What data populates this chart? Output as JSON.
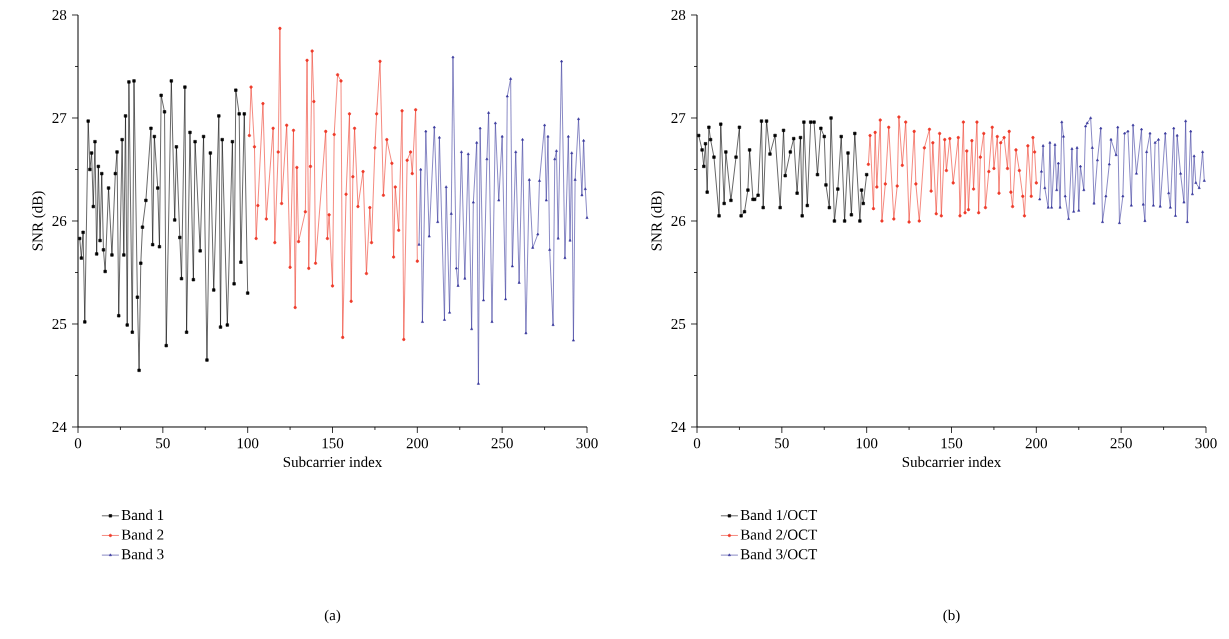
{
  "chart_data": [
    {
      "type": "line",
      "xlabel": "Subcarrier index",
      "ylabel": "SNR (dB)",
      "xlim": [
        0,
        300
      ],
      "ylim": [
        24,
        28
      ],
      "xticks": [
        0,
        50,
        100,
        150,
        200,
        250,
        300
      ],
      "yticks": [
        24,
        25,
        26,
        27,
        28
      ],
      "legend": "bottom",
      "annotations": [
        "(a)"
      ],
      "series": [
        {
          "name": "Band 1",
          "color": "#000000",
          "marker": "square",
          "x": [
            1,
            2,
            3,
            4,
            6,
            7,
            8,
            9,
            10,
            11,
            12,
            13,
            14,
            15,
            16,
            18,
            20,
            22,
            23,
            24,
            26,
            27,
            28,
            29,
            30,
            32,
            33,
            35,
            36,
            37,
            38,
            40,
            43,
            44,
            45,
            47,
            48,
            49,
            51,
            52,
            55,
            57,
            58,
            60,
            61,
            63,
            64,
            66,
            68,
            69,
            72,
            74,
            76,
            78,
            80,
            83,
            84,
            85,
            88,
            91,
            92,
            93,
            95,
            96,
            98,
            100
          ],
          "values": [
            25.83,
            25.64,
            25.89,
            25.02,
            26.97,
            26.5,
            26.66,
            26.14,
            26.77,
            25.68,
            26.53,
            25.81,
            26.46,
            25.72,
            25.51,
            26.32,
            25.67,
            26.46,
            26.67,
            25.08,
            26.79,
            25.67,
            27.02,
            24.99,
            27.35,
            24.92,
            27.36,
            25.26,
            24.55,
            25.59,
            25.94,
            26.2,
            26.9,
            25.77,
            26.82,
            26.32,
            25.75,
            27.22,
            27.06,
            24.79,
            27.36,
            26.01,
            26.72,
            25.84,
            25.44,
            27.3,
            24.92,
            26.86,
            25.43,
            26.77,
            25.71,
            26.82,
            24.65,
            26.66,
            25.33,
            27.02,
            24.97,
            26.79,
            24.99,
            26.77,
            25.39,
            27.27,
            27.04,
            25.6,
            27.04,
            25.3
          ]
        },
        {
          "name": "Band 2",
          "color": "#ee3b2a",
          "marker": "circle",
          "x": [
            101,
            102,
            104,
            105,
            106,
            109,
            111,
            115,
            116,
            118,
            119,
            120,
            123,
            125,
            127,
            128,
            129,
            130,
            134,
            135,
            136,
            137,
            138,
            139,
            140,
            146,
            147,
            148,
            150,
            151,
            153,
            155,
            156,
            158,
            160,
            161,
            162,
            163,
            165,
            168,
            170,
            172,
            173,
            175,
            176,
            178,
            180,
            182,
            185,
            186,
            187,
            189,
            191,
            192,
            194,
            196,
            197,
            199,
            200
          ],
          "values": [
            26.83,
            27.3,
            26.72,
            25.83,
            26.15,
            27.14,
            26.02,
            26.9,
            25.79,
            26.67,
            27.87,
            26.17,
            26.93,
            25.55,
            26.88,
            25.16,
            26.52,
            25.8,
            26.09,
            27.56,
            25.54,
            26.53,
            27.65,
            27.16,
            25.59,
            26.87,
            25.83,
            26.06,
            25.37,
            26.84,
            27.42,
            27.36,
            24.87,
            26.26,
            27.04,
            25.22,
            26.43,
            26.9,
            26.14,
            26.48,
            25.49,
            26.13,
            25.79,
            26.71,
            27.04,
            27.55,
            26.25,
            26.79,
            26.56,
            25.65,
            26.33,
            25.91,
            27.07,
            24.85,
            26.59,
            26.67,
            26.46,
            27.08,
            25.61
          ]
        },
        {
          "name": "Band 3",
          "color": "#3a3a9e",
          "marker": "triangle",
          "x": [
            201,
            202,
            203,
            205,
            207,
            210,
            212,
            213,
            216,
            217,
            219,
            220,
            221,
            223,
            224,
            226,
            228,
            230,
            232,
            233,
            235,
            236,
            237,
            239,
            241,
            242,
            244,
            246,
            248,
            250,
            252,
            253,
            255,
            256,
            258,
            260,
            262,
            264,
            266,
            268,
            271,
            272,
            275,
            276,
            277,
            278,
            280,
            281,
            282,
            283,
            285,
            287,
            289,
            290,
            291,
            292,
            293,
            295,
            297,
            298,
            299,
            300
          ],
          "values": [
            25.77,
            26.5,
            25.02,
            26.87,
            25.85,
            26.91,
            25.99,
            26.81,
            25.04,
            26.33,
            25.11,
            26.07,
            27.59,
            25.54,
            25.37,
            26.67,
            25.44,
            26.65,
            24.95,
            26.18,
            26.76,
            24.42,
            26.9,
            25.23,
            26.6,
            27.05,
            25.02,
            26.95,
            26.2,
            26.82,
            25.24,
            27.21,
            27.38,
            25.56,
            26.67,
            25.4,
            26.79,
            24.91,
            26.4,
            25.74,
            25.87,
            26.39,
            26.93,
            26.2,
            26.82,
            25.72,
            24.99,
            26.6,
            26.68,
            25.83,
            27.55,
            25.64,
            26.82,
            25.81,
            26.66,
            24.84,
            26.4,
            26.99,
            26.25,
            26.78,
            26.31,
            26.03
          ]
        }
      ]
    },
    {
      "type": "line",
      "xlabel": "Subcarrier index",
      "ylabel": "SNR (dB)",
      "xlim": [
        0,
        300
      ],
      "ylim": [
        24,
        28
      ],
      "xticks": [
        0,
        50,
        100,
        150,
        200,
        250,
        300
      ],
      "yticks": [
        24,
        25,
        26,
        27,
        28
      ],
      "legend": "bottom",
      "annotations": [
        "(b)"
      ],
      "series": [
        {
          "name": "Band 1/OCT",
          "color": "#000000",
          "marker": "square",
          "x": [
            1,
            3,
            4,
            5,
            6,
            7,
            8,
            10,
            13,
            14,
            16,
            17,
            20,
            23,
            25,
            26,
            28,
            30,
            31,
            33,
            34,
            36,
            38,
            39,
            41,
            43,
            46,
            49,
            51,
            52,
            55,
            57,
            59,
            61,
            62,
            63,
            65,
            67,
            69,
            71,
            73,
            75,
            76,
            78,
            79,
            81,
            83,
            85,
            87,
            89,
            91,
            93,
            96,
            97,
            98,
            100
          ],
          "values": [
            26.83,
            26.69,
            26.53,
            26.75,
            26.28,
            26.91,
            26.79,
            26.62,
            26.05,
            26.94,
            26.17,
            26.67,
            26.2,
            26.62,
            26.91,
            26.05,
            26.09,
            26.3,
            26.69,
            26.21,
            26.21,
            26.25,
            26.97,
            26.13,
            26.97,
            26.65,
            26.83,
            26.13,
            26.88,
            26.44,
            26.67,
            26.8,
            26.27,
            26.81,
            26.05,
            26.96,
            26.15,
            26.96,
            26.96,
            26.45,
            26.9,
            26.82,
            26.35,
            26.13,
            27.0,
            26.0,
            26.31,
            26.82,
            26.0,
            26.66,
            26.06,
            26.85,
            26.0,
            26.3,
            26.17,
            26.45
          ]
        },
        {
          "name": "Band 2/OCT",
          "color": "#ee3b2a",
          "marker": "circle",
          "x": [
            101,
            102,
            104,
            105,
            106,
            108,
            109,
            111,
            113,
            116,
            118,
            119,
            121,
            123,
            125,
            128,
            129,
            131,
            134,
            137,
            138,
            139,
            141,
            143,
            144,
            146,
            147,
            149,
            151,
            154,
            155,
            157,
            158,
            159,
            160,
            162,
            163,
            165,
            166,
            167,
            169,
            170,
            172,
            174,
            175,
            177,
            178,
            179,
            181,
            183,
            184,
            185,
            186,
            188,
            190,
            192,
            193,
            195,
            197,
            198,
            199,
            200
          ],
          "values": [
            26.55,
            26.83,
            26.12,
            26.86,
            26.33,
            26.98,
            26.0,
            26.36,
            26.91,
            26.02,
            26.34,
            27.01,
            26.54,
            26.96,
            25.99,
            26.87,
            26.36,
            26.0,
            26.71,
            26.89,
            26.29,
            26.76,
            26.07,
            26.85,
            26.05,
            26.79,
            26.49,
            26.8,
            26.37,
            26.81,
            26.05,
            26.96,
            26.08,
            26.68,
            26.11,
            26.78,
            26.31,
            26.96,
            26.08,
            26.62,
            26.85,
            26.13,
            26.48,
            26.91,
            26.51,
            26.82,
            26.27,
            26.76,
            26.81,
            26.51,
            26.87,
            26.28,
            26.14,
            26.69,
            26.49,
            26.24,
            26.05,
            26.73,
            26.24,
            26.81,
            26.67,
            26.37
          ]
        },
        {
          "name": "Band 3/OCT",
          "color": "#3a3a9e",
          "marker": "triangle",
          "x": [
            202,
            203,
            204,
            205,
            207,
            208,
            209,
            211,
            212,
            213,
            214,
            215,
            216,
            217,
            219,
            221,
            222,
            224,
            225,
            226,
            228,
            229,
            230,
            232,
            233,
            234,
            236,
            238,
            239,
            241,
            243,
            244,
            247,
            248,
            249,
            251,
            252,
            254,
            256,
            257,
            259,
            262,
            263,
            264,
            265,
            267,
            269,
            270,
            272,
            273,
            276,
            278,
            279,
            281,
            282,
            283,
            285,
            287,
            288,
            289,
            291,
            292,
            293,
            294,
            296,
            298,
            299
          ],
          "values": [
            26.21,
            26.48,
            26.73,
            26.32,
            26.13,
            26.76,
            26.13,
            26.74,
            26.3,
            26.56,
            26.13,
            26.96,
            26.82,
            26.24,
            26.02,
            26.7,
            26.09,
            26.71,
            26.1,
            26.53,
            26.3,
            26.92,
            26.95,
            27.0,
            26.71,
            26.17,
            26.59,
            26.9,
            25.99,
            26.24,
            26.55,
            26.79,
            26.64,
            26.91,
            25.98,
            26.24,
            26.85,
            26.87,
            26.15,
            26.93,
            26.46,
            26.89,
            26.16,
            26.0,
            26.67,
            26.85,
            26.15,
            26.76,
            26.79,
            26.14,
            26.85,
            26.27,
            26.13,
            26.9,
            26.05,
            26.83,
            26.46,
            26.18,
            26.97,
            25.99,
            26.87,
            26.26,
            26.63,
            26.37,
            26.32,
            26.67,
            26.39
          ]
        }
      ]
    }
  ]
}
